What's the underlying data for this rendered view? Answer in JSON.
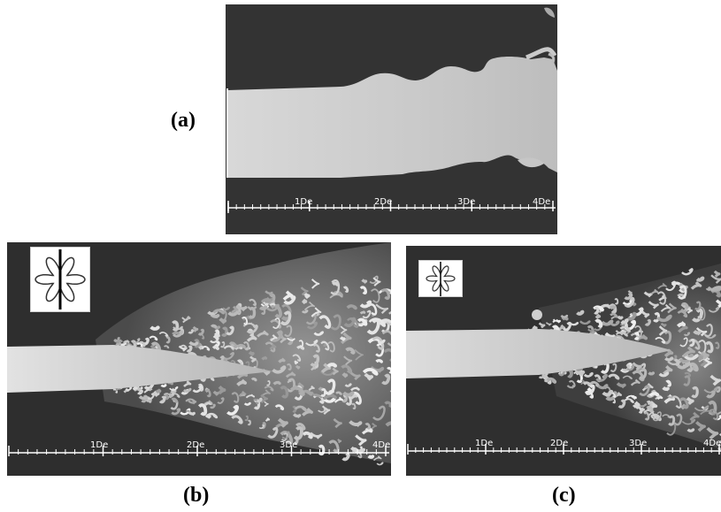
{
  "panels": {
    "a": {
      "caption": "(a)",
      "scale_labels": [
        "1De",
        "2De",
        "3De",
        "4De"
      ]
    },
    "b": {
      "caption": "(b)",
      "scale_labels": [
        "1De",
        "2De",
        "3De",
        "4De"
      ]
    },
    "c": {
      "caption": "(c)",
      "scale_labels": [
        "1De",
        "2De",
        "3De",
        "4De"
      ]
    }
  },
  "colors": {
    "background": "#2f2f2f",
    "jet": "#cfcfcf",
    "scale": "#ffffff",
    "caption": "#000000"
  }
}
